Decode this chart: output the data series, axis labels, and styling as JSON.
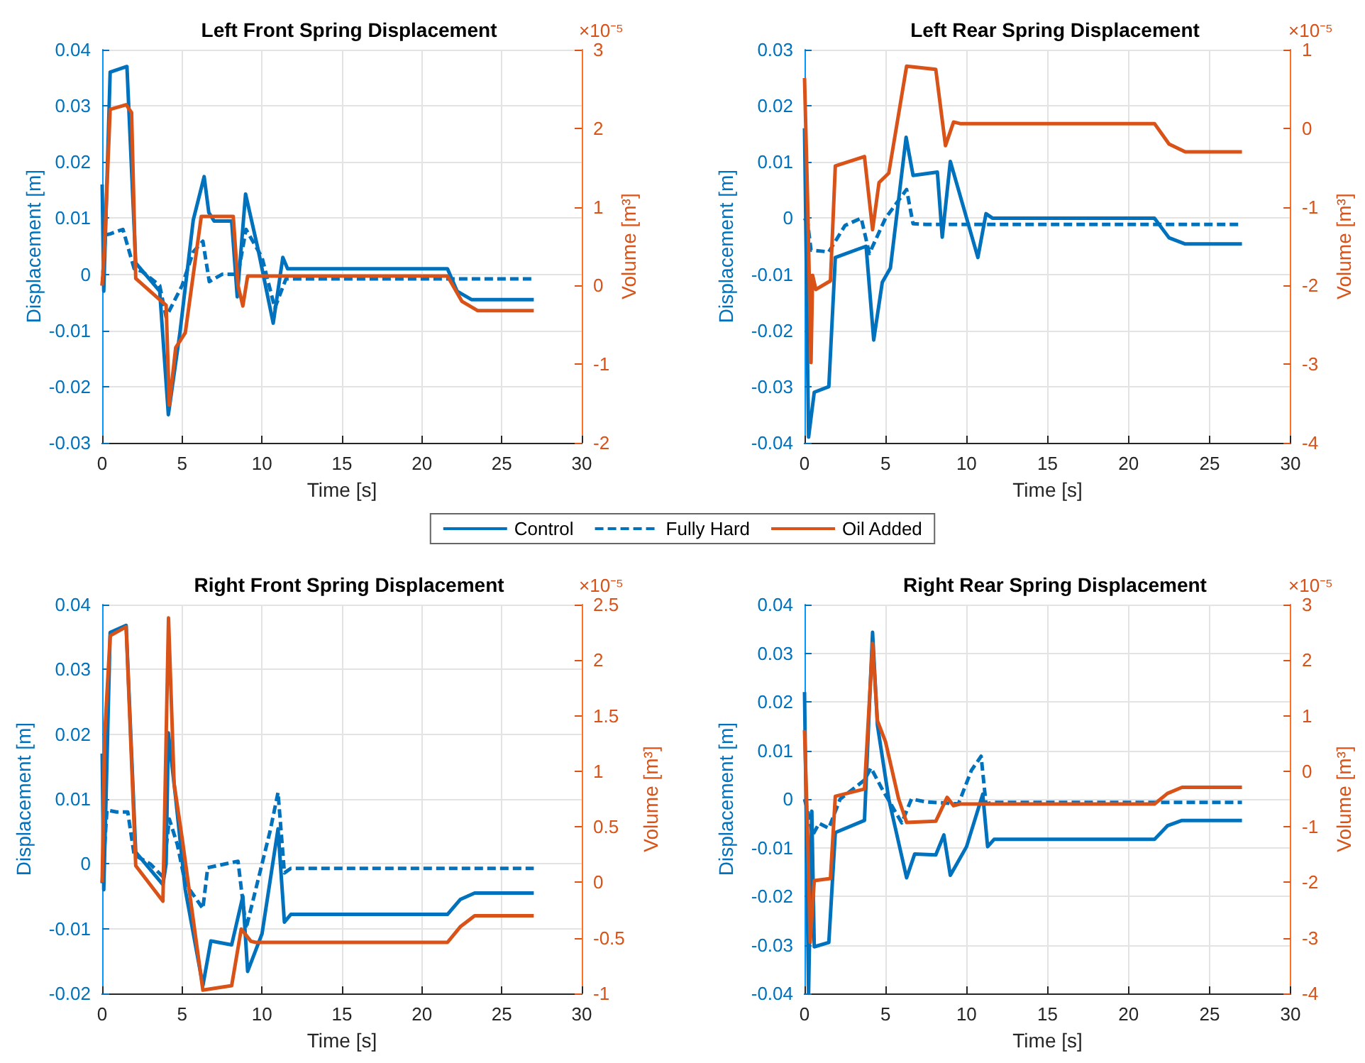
{
  "chart_data": [
    {
      "type": "line",
      "title": "Left Front Spring Displacement",
      "xlabel": "Time [s]",
      "ylabel": "Displacement [m]",
      "y2label": "Volume [m³]",
      "annotations": [
        "×10⁻⁵"
      ],
      "xlim": [
        0,
        30
      ],
      "xticks": [
        0,
        5,
        10,
        15,
        20,
        25,
        30
      ],
      "ylim": [
        -0.03,
        0.04
      ],
      "yticks": [
        -0.03,
        -0.02,
        -0.01,
        0,
        0.01,
        0.02,
        0.03,
        0.04
      ],
      "y2lim": [
        -2,
        3
      ],
      "y2ticks": [
        -2,
        -1,
        0,
        1,
        2,
        3
      ],
      "grid": true,
      "legend": "bottom",
      "series": [
        {
          "name": "Control",
          "color": "#0072bd",
          "line_style": "solid",
          "x": [
            0,
            0.1,
            0.5,
            1.55,
            2.1,
            3.6,
            4.14,
            4.86,
            5.7,
            6.38,
            6.67,
            7.0,
            8.1,
            8.45,
            8.97,
            9.74,
            10.7,
            11.3,
            11.6,
            21.6,
            22.2,
            23.1,
            27
          ],
          "values": [
            0.016,
            -0.003,
            0.036,
            0.037,
            0.002,
            -0.003,
            -0.025,
            -0.0105,
            0.0097,
            0.0174,
            0.011,
            0.0095,
            0.0095,
            -0.004,
            0.0143,
            0.0046,
            -0.0087,
            0.003,
            0.001,
            0.001,
            -0.003,
            -0.0045,
            -0.0045
          ]
        },
        {
          "name": "Fully Hard",
          "color": "#0072bd",
          "line_style": "dashed",
          "x": [
            0,
            0.2,
            0.5,
            1.3,
            1.6,
            2.0,
            2.5,
            3.6,
            4.0,
            5.0,
            5.7,
            6.3,
            6.7,
            7.5,
            8.5,
            9.0,
            10.0,
            10.8,
            11.5,
            27
          ],
          "values": [
            -0.002,
            0.007,
            0.0072,
            0.008,
            0.005,
            0.001,
            0.0005,
            -0.002,
            -0.0076,
            -0.002,
            0.004,
            0.0059,
            -0.0013,
            0.0,
            0.0,
            0.008,
            0.003,
            -0.006,
            -0.0008,
            -0.0008
          ]
        },
        {
          "name": "Oil Added",
          "color": "#d95319",
          "line_style": "solid",
          "axis": "y2",
          "x": [
            0,
            0.15,
            0.5,
            1.5,
            1.84,
            2.1,
            3.6,
            4.0,
            4.2,
            4.6,
            5.2,
            6.2,
            8.2,
            8.5,
            8.8,
            9.1,
            9.5,
            21.6,
            22.5,
            23.5,
            27
          ],
          "values": [
            0,
            0.5,
            2.24,
            2.3,
            2.2,
            0.09,
            -0.18,
            -0.25,
            -1.52,
            -0.79,
            -0.6,
            0.88,
            0.88,
            0.0,
            -0.26,
            0.12,
            0.12,
            0.12,
            -0.2,
            -0.32,
            -0.32
          ]
        }
      ]
    },
    {
      "type": "line",
      "title": "Left Rear Spring Displacement",
      "xlabel": "Time [s]",
      "ylabel": "Displacement [m]",
      "y2label": "Volume [m³]",
      "annotations": [
        "×10⁻⁵"
      ],
      "xlim": [
        0,
        30
      ],
      "xticks": [
        0,
        5,
        10,
        15,
        20,
        25,
        30
      ],
      "ylim": [
        -0.04,
        0.03
      ],
      "yticks": [
        -0.04,
        -0.03,
        -0.02,
        -0.01,
        0,
        0.01,
        0.02,
        0.03
      ],
      "y2lim": [
        -4,
        1
      ],
      "y2ticks": [
        -4,
        -3,
        -2,
        -1,
        0,
        1
      ],
      "grid": true,
      "series": [
        {
          "color": "#0072bd",
          "line_style": "solid",
          "x": [
            0,
            0.25,
            0.6,
            1.5,
            1.9,
            3.8,
            4.27,
            4.8,
            5.3,
            6.27,
            6.7,
            8.2,
            8.5,
            9.0,
            10.7,
            11.2,
            11.6,
            21.6,
            22.5,
            23.5,
            27
          ],
          "values": [
            0.016,
            -0.039,
            -0.031,
            -0.03,
            -0.007,
            -0.005,
            -0.0217,
            -0.0114,
            -0.0089,
            0.0144,
            0.0076,
            0.0082,
            -0.0034,
            0.0101,
            -0.007,
            0.0008,
            0.0,
            0.0,
            -0.0035,
            -0.0046,
            -0.0046
          ]
        },
        {
          "color": "#0072bd",
          "line_style": "dashed",
          "x": [
            0,
            0.2,
            0.4,
            1.5,
            2.5,
            3.5,
            4.0,
            5.0,
            6.3,
            6.7,
            7.5,
            27
          ],
          "values": [
            0,
            -0.001,
            -0.0057,
            -0.006,
            -0.0013,
            0.0,
            -0.0063,
            0.0,
            0.0051,
            -0.001,
            -0.0011,
            -0.0011
          ]
        },
        {
          "color": "#d95319",
          "line_style": "solid",
          "axis": "y2",
          "x": [
            0,
            0.2,
            0.4,
            0.5,
            0.7,
            1.6,
            1.9,
            3.7,
            4.2,
            4.6,
            5.2,
            6.3,
            8.1,
            8.7,
            9.2,
            9.6,
            21.6,
            22.5,
            23.5,
            27
          ],
          "values": [
            0.64,
            -1.0,
            -2.98,
            -1.87,
            -2.05,
            -1.94,
            -0.48,
            -0.36,
            -1.29,
            -0.69,
            -0.57,
            0.79,
            0.75,
            -0.22,
            0.08,
            0.06,
            0.06,
            -0.2,
            -0.3,
            -0.3
          ]
        }
      ]
    },
    {
      "type": "line",
      "title": "Right Front Spring Displacement",
      "xlabel": "Time [s]",
      "ylabel": "Displacement [m]",
      "y2label": "Volume [m³]",
      "annotations": [
        "×10⁻⁵"
      ],
      "xlim": [
        0,
        30
      ],
      "xticks": [
        0,
        5,
        10,
        15,
        20,
        25,
        30
      ],
      "ylim": [
        -0.02,
        0.04
      ],
      "yticks": [
        -0.02,
        -0.01,
        0,
        0.01,
        0.02,
        0.03,
        0.04
      ],
      "y2lim": [
        -1,
        2.5
      ],
      "y2ticks": [
        -1,
        -0.5,
        0,
        0.5,
        1,
        1.5,
        2,
        2.5
      ],
      "grid": true,
      "series": [
        {
          "color": "#0072bd",
          "line_style": "solid",
          "x": [
            0,
            0.1,
            0.5,
            1.5,
            2.1,
            3.8,
            4.0,
            4.14,
            4.6,
            5.2,
            6.3,
            6.8,
            8.1,
            8.8,
            9.1,
            10.0,
            11.0,
            11.4,
            11.8,
            21.6,
            22.4,
            23.3,
            27
          ],
          "values": [
            0.017,
            -0.004,
            0.0357,
            0.0368,
            0.0018,
            -0.0032,
            0.0,
            0.0202,
            0.0101,
            -0.004,
            -0.0188,
            -0.0119,
            -0.0125,
            -0.005,
            -0.0166,
            -0.0108,
            0.0054,
            -0.009,
            -0.0078,
            -0.0078,
            -0.0055,
            -0.0045,
            -0.0045
          ]
        },
        {
          "color": "#0072bd",
          "line_style": "dashed",
          "x": [
            0,
            0.3,
            0.9,
            1.6,
            2.0,
            3.0,
            3.8,
            4.2,
            4.7,
            5.2,
            6.3,
            6.6,
            8.5,
            9.0,
            10.5,
            11.0,
            11.4,
            11.8,
            27
          ],
          "values": [
            -0.003,
            0.0083,
            0.008,
            0.008,
            0.0014,
            0.0,
            -0.002,
            0.0069,
            0.003,
            -0.003,
            -0.0069,
            -0.0006,
            0.0004,
            -0.01,
            0.005,
            0.011,
            -0.0014,
            -0.0007,
            -0.0007
          ]
        },
        {
          "color": "#d95319",
          "line_style": "solid",
          "axis": "y2",
          "x": [
            0,
            0.15,
            0.5,
            1.5,
            2.1,
            3.8,
            4.15,
            4.5,
            5.0,
            6.3,
            8.1,
            8.7,
            9.3,
            9.6,
            21.6,
            22.4,
            23.3,
            27
          ],
          "values": [
            0,
            1.3,
            2.22,
            2.3,
            0.15,
            -0.17,
            2.38,
            0.89,
            0.4,
            -0.97,
            -0.93,
            -0.42,
            -0.53,
            -0.54,
            -0.54,
            -0.4,
            -0.3,
            -0.3
          ]
        }
      ]
    },
    {
      "type": "line",
      "title": "Right Rear Spring Displacement",
      "xlabel": "Time [s]",
      "ylabel": "Displacement [m]",
      "y2label": "Volume [m³]",
      "annotations": [
        "×10⁻⁵"
      ],
      "xlim": [
        0,
        30
      ],
      "xticks": [
        0,
        5,
        10,
        15,
        20,
        25,
        30
      ],
      "ylim": [
        -0.04,
        0.04
      ],
      "yticks": [
        -0.04,
        -0.03,
        -0.02,
        -0.01,
        0,
        0.01,
        0.02,
        0.03,
        0.04
      ],
      "y2lim": [
        -4,
        3
      ],
      "y2ticks": [
        -4,
        -3,
        -2,
        -1,
        0,
        1,
        2,
        3
      ],
      "grid": true,
      "series": [
        {
          "color": "#0072bd",
          "line_style": "solid",
          "x": [
            0,
            0.25,
            0.45,
            0.6,
            1.5,
            1.9,
            3.7,
            4.2,
            4.5,
            5.2,
            6.3,
            6.8,
            8.1,
            8.6,
            9.0,
            10.0,
            11.0,
            11.3,
            11.7,
            21.6,
            22.4,
            23.3,
            27
          ],
          "values": [
            0.022,
            -0.04,
            -0.0025,
            -0.0304,
            -0.0295,
            -0.0069,
            -0.0044,
            0.0343,
            0.0152,
            0.0,
            -0.0162,
            -0.0113,
            -0.0115,
            -0.0074,
            -0.0157,
            -0.0098,
            0.001,
            -0.0098,
            -0.0083,
            -0.0083,
            -0.0055,
            -0.0044,
            -0.0044
          ]
        },
        {
          "color": "#0072bd",
          "line_style": "dashed",
          "x": [
            0,
            0.2,
            0.5,
            0.9,
            1.5,
            2.2,
            3.7,
            4.1,
            4.8,
            6.0,
            6.6,
            7.5,
            9.5,
            10.3,
            10.9,
            11.2,
            11.6,
            27
          ],
          "values": [
            0,
            -0.0025,
            -0.0074,
            -0.005,
            -0.006,
            0.0,
            0.0039,
            0.0064,
            0.002,
            -0.0049,
            0.0,
            -0.0006,
            -0.001,
            0.0059,
            0.0088,
            -0.001,
            -0.0007,
            -0.0007
          ]
        },
        {
          "color": "#d95319",
          "line_style": "solid",
          "axis": "y2",
          "x": [
            0,
            0.2,
            0.35,
            0.6,
            1.6,
            1.9,
            3.7,
            4.2,
            4.5,
            5.0,
            5.8,
            6.3,
            8.1,
            8.8,
            9.2,
            9.6,
            21.6,
            22.4,
            23.3,
            27
          ],
          "values": [
            0.74,
            -1.2,
            -3.08,
            -1.97,
            -1.93,
            -0.45,
            -0.32,
            2.3,
            0.91,
            0.53,
            -0.49,
            -0.92,
            -0.9,
            -0.47,
            -0.62,
            -0.59,
            -0.59,
            -0.4,
            -0.29,
            -0.29
          ]
        }
      ]
    }
  ]
}
